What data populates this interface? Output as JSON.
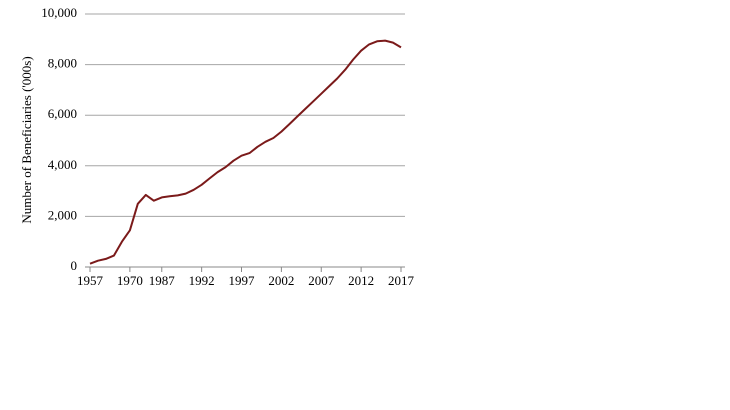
{
  "chart_data": {
    "type": "line",
    "y_label": "Number of Beneficiaries  ('000s)",
    "categories": [
      "1957",
      null,
      null,
      null,
      null,
      "1970",
      null,
      null,
      null,
      "1987",
      null,
      null,
      null,
      null,
      "1992",
      null,
      null,
      null,
      null,
      "1997",
      null,
      null,
      null,
      null,
      "2002",
      null,
      null,
      null,
      null,
      "2007",
      null,
      null,
      null,
      null,
      "2012",
      null,
      null,
      null,
      null,
      "2017"
    ],
    "series": [
      {
        "color": "#7b1a1a",
        "values": [
          130,
          250,
          320,
          450,
          1000,
          1450,
          2500,
          2850,
          2620,
          2750,
          2800,
          2830,
          2900,
          3050,
          3250,
          3500,
          3750,
          3950,
          4200,
          4400,
          4500,
          4750,
          4950,
          5100,
          5350,
          5650,
          5950,
          6250,
          6550,
          6850,
          7150,
          7450,
          7800,
          8200,
          8550,
          8800,
          8920,
          8950,
          8870,
          8680
        ]
      }
    ],
    "ylim": [
      0,
      10000
    ],
    "yticks": [
      0,
      {
        "value": 2000,
        "label": "2,000"
      },
      {
        "value": 4000,
        "label": "4,000"
      },
      {
        "value": 6000,
        "label": "6,000"
      },
      {
        "value": 8000,
        "label": "8,000"
      },
      {
        "value": 10000,
        "label": "10,000"
      }
    ],
    "grid": true
  }
}
